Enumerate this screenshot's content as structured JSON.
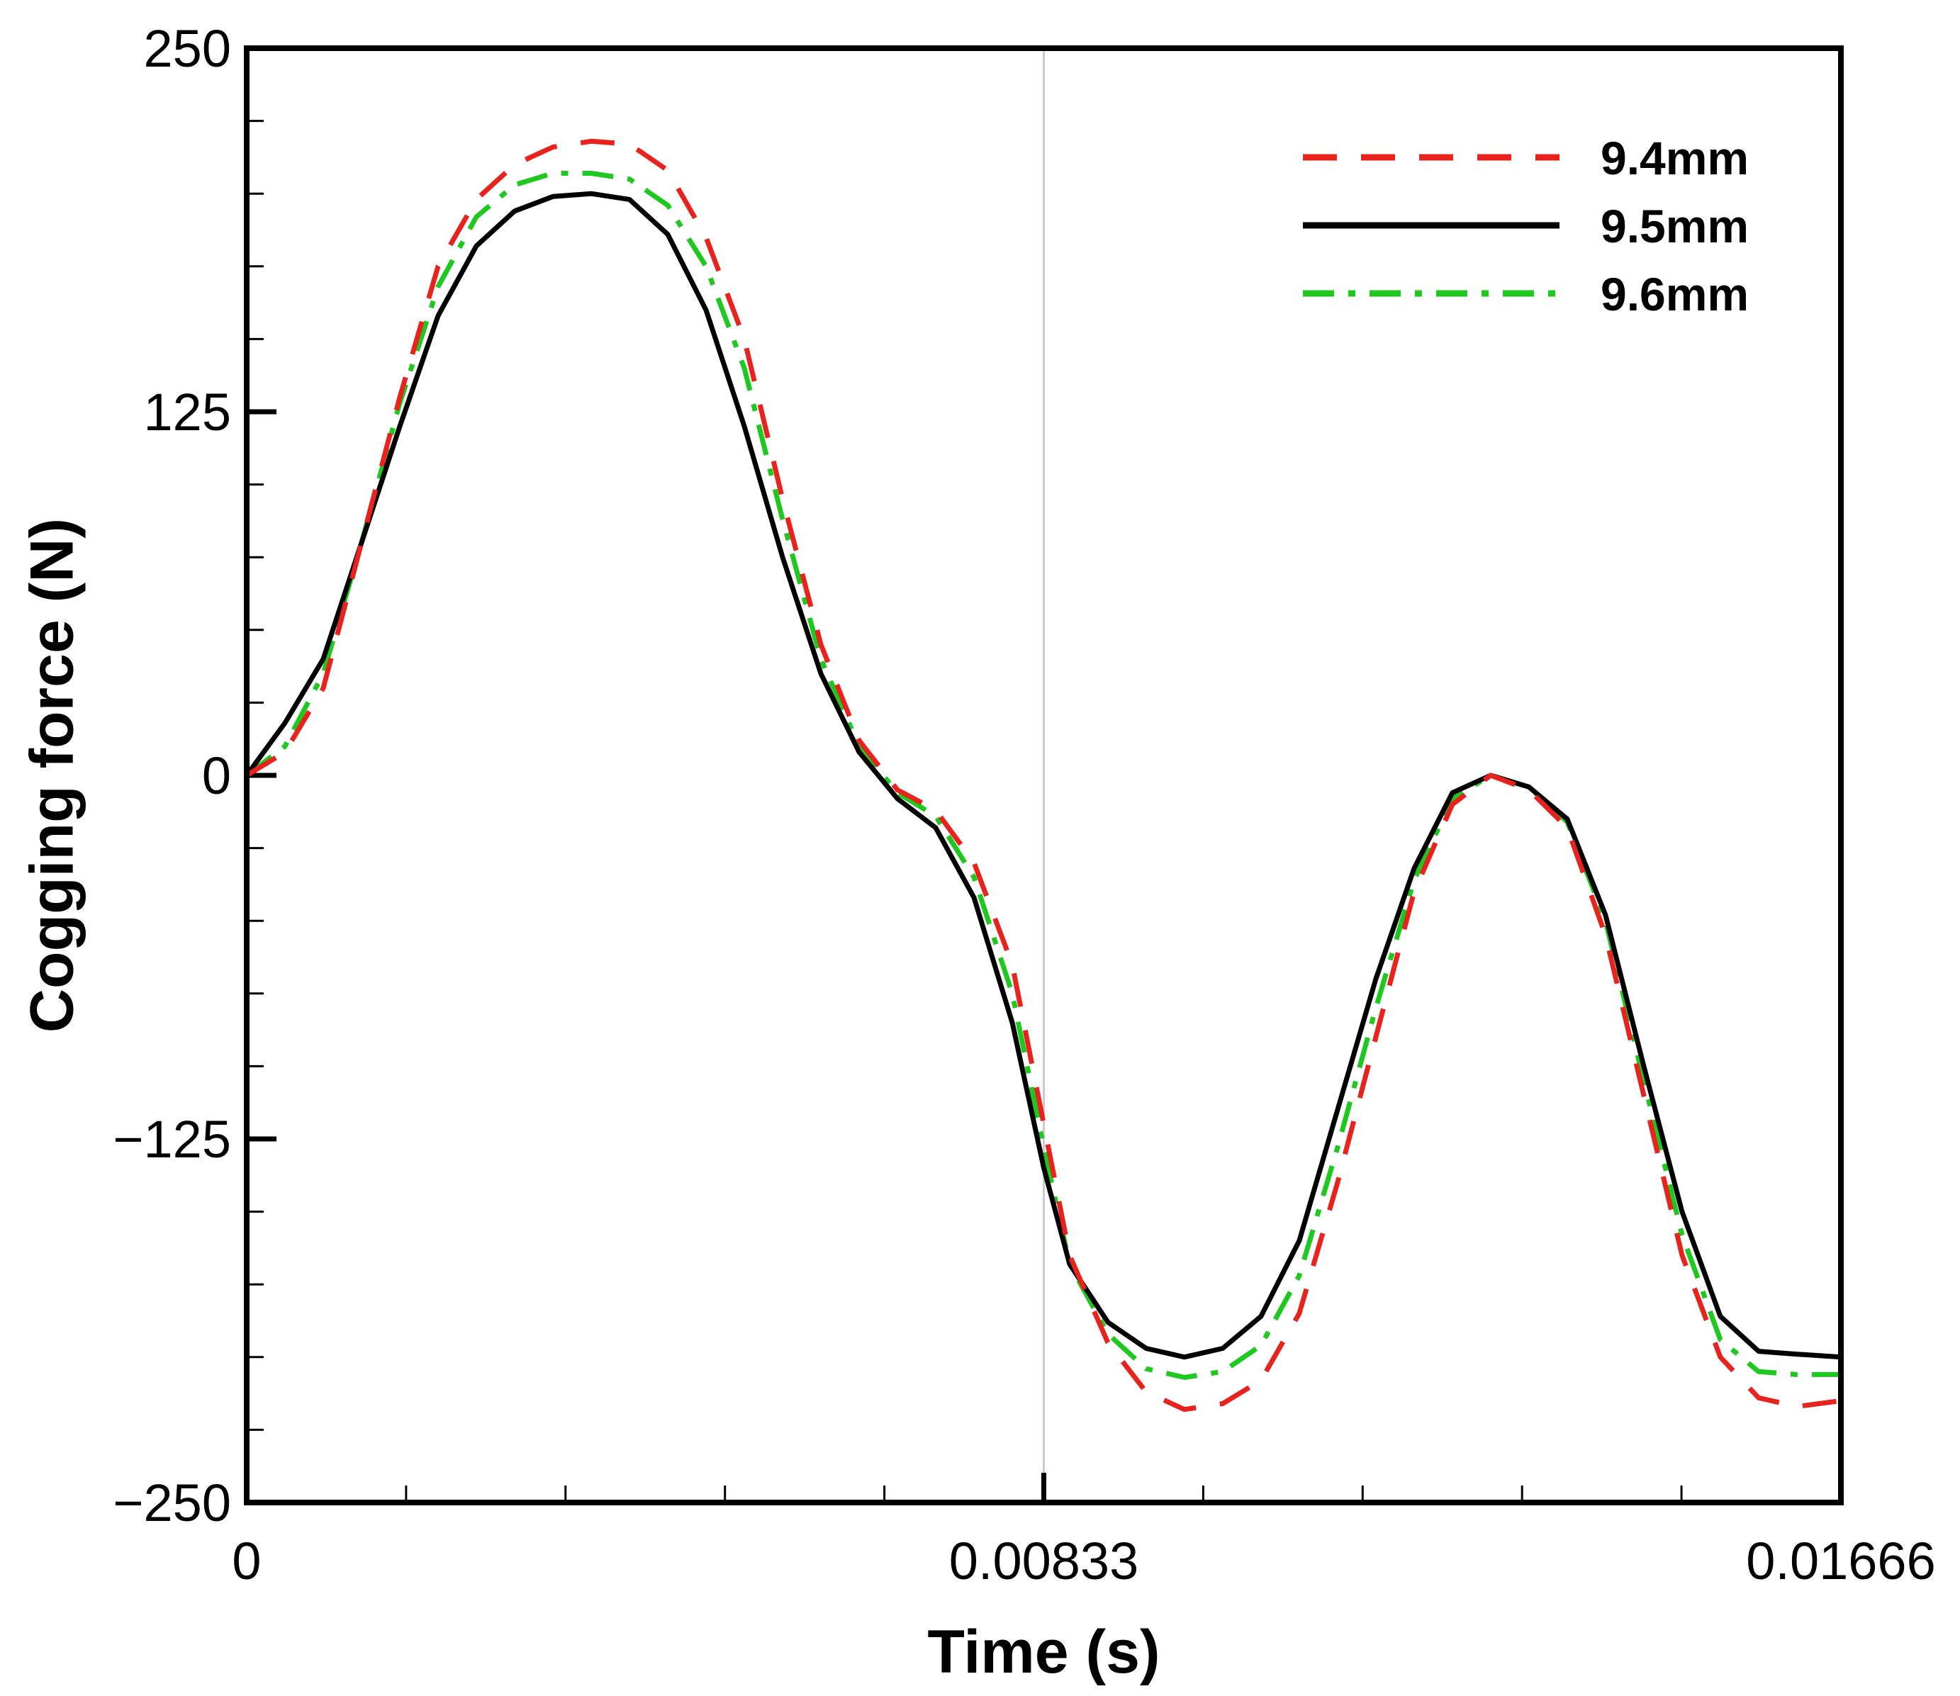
{
  "chart_data": {
    "type": "line",
    "title": "",
    "xlabel": "Time (s)",
    "ylabel": "Cogging force (N)",
    "xlim": [
      0,
      0.01666
    ],
    "ylim": [
      -250,
      250
    ],
    "x_ticks": [
      0,
      0.00833,
      0.01666
    ],
    "x_tick_labels": [
      "0",
      "0.00833",
      "0.01666"
    ],
    "y_ticks": [
      250,
      125,
      0,
      -125,
      -250
    ],
    "y_tick_labels": [
      "250",
      "125",
      "0",
      "−125",
      "−250"
    ],
    "x_minor_count": 9,
    "y_minor_per_major": 5,
    "reference_line_x": 0.00833,
    "legend_position": "top-right",
    "series": [
      {
        "name": "9.4mm",
        "color": "#e8231e",
        "dash": "dashed",
        "x": [
          0,
          0.0004,
          0.0008,
          0.0012,
          0.0016,
          0.002,
          0.0024,
          0.0028,
          0.0032,
          0.0036,
          0.004,
          0.0044,
          0.0048,
          0.0052,
          0.0056,
          0.006,
          0.0064,
          0.0068,
          0.0072,
          0.0076,
          0.008,
          0.00833,
          0.0086,
          0.009,
          0.0094,
          0.0098,
          0.0102,
          0.0106,
          0.011,
          0.0114,
          0.0118,
          0.0122,
          0.0126,
          0.013,
          0.0134,
          0.0138,
          0.0142,
          0.0146,
          0.015,
          0.0154,
          0.0158,
          0.0162,
          0.01666
        ],
        "y": [
          0,
          8,
          30,
          80,
          130,
          175,
          198,
          210,
          216,
          218,
          217,
          208,
          185,
          150,
          95,
          45,
          12,
          -5,
          -12,
          -30,
          -65,
          -120,
          -165,
          -195,
          -212,
          -218,
          -216,
          -208,
          -185,
          -140,
          -90,
          -40,
          -10,
          0,
          -5,
          -18,
          -55,
          -110,
          -165,
          -200,
          -214,
          -217,
          -215
        ]
      },
      {
        "name": "9.5mm",
        "color": "#000000",
        "dash": "solid",
        "x": [
          0,
          0.0004,
          0.0008,
          0.0012,
          0.0016,
          0.002,
          0.0024,
          0.0028,
          0.0032,
          0.0036,
          0.004,
          0.0044,
          0.0048,
          0.0052,
          0.0056,
          0.006,
          0.0064,
          0.0068,
          0.0072,
          0.0076,
          0.008,
          0.00833,
          0.0086,
          0.009,
          0.0094,
          0.0098,
          0.0102,
          0.0106,
          0.011,
          0.0114,
          0.0118,
          0.0122,
          0.0126,
          0.013,
          0.0134,
          0.0138,
          0.0142,
          0.0146,
          0.015,
          0.0154,
          0.0158,
          0.0162,
          0.01666
        ],
        "y": [
          0,
          18,
          40,
          80,
          120,
          158,
          182,
          194,
          199,
          200,
          198,
          186,
          160,
          120,
          75,
          35,
          8,
          -8,
          -18,
          -42,
          -85,
          -135,
          -168,
          -188,
          -197,
          -200,
          -197,
          -186,
          -160,
          -115,
          -70,
          -32,
          -6,
          0,
          -4,
          -15,
          -48,
          -100,
          -150,
          -186,
          -198,
          -199,
          -200
        ]
      },
      {
        "name": "9.6mm",
        "color": "#1ec81e",
        "dash": "dashdot",
        "x": [
          0,
          0.0004,
          0.0008,
          0.0012,
          0.0016,
          0.002,
          0.0024,
          0.0028,
          0.0032,
          0.0036,
          0.004,
          0.0044,
          0.0048,
          0.0052,
          0.0056,
          0.006,
          0.0064,
          0.0068,
          0.0072,
          0.0076,
          0.008,
          0.00833,
          0.0086,
          0.009,
          0.0094,
          0.0098,
          0.0102,
          0.0106,
          0.011,
          0.0114,
          0.0118,
          0.0122,
          0.0126,
          0.013,
          0.0134,
          0.0138,
          0.0142,
          0.0146,
          0.015,
          0.0154,
          0.0158,
          0.0162,
          0.01666
        ],
        "y": [
          0,
          10,
          35,
          80,
          128,
          168,
          192,
          203,
          207,
          207,
          205,
          196,
          175,
          140,
          88,
          40,
          10,
          -6,
          -14,
          -35,
          -75,
          -128,
          -168,
          -192,
          -204,
          -207,
          -205,
          -196,
          -172,
          -128,
          -80,
          -36,
          -8,
          0,
          -4,
          -16,
          -50,
          -105,
          -158,
          -194,
          -205,
          -206,
          -206
        ]
      }
    ]
  }
}
